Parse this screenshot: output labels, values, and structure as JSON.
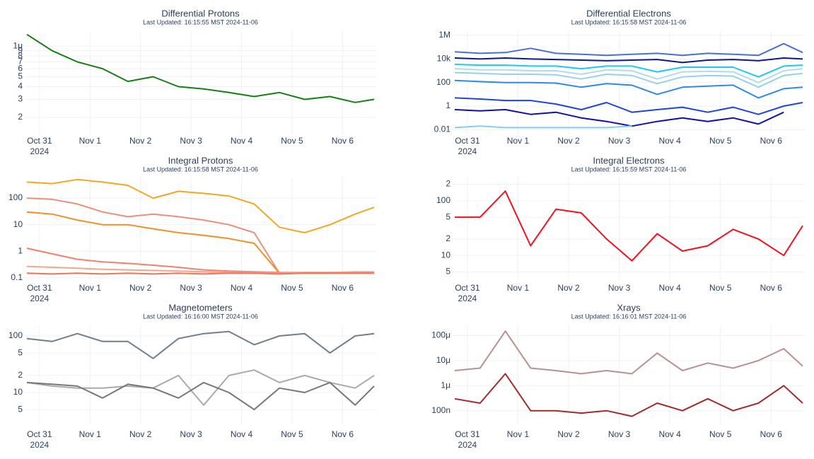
{
  "chart_data": [
    {
      "type": "line",
      "title": "Differential Protons",
      "subtitle": "Last Updated: 16:15:55 MST 2024-11-06",
      "ylog": true,
      "grid": true,
      "xlim": [
        "2024-10-30T17:00",
        "2024-11-06T16:00"
      ],
      "xticks": [
        {
          "value": "2024-10-31T00:00",
          "label": "Oct 31"
        },
        {
          "value": "2024-11-01T00:00",
          "label": "Nov 1"
        },
        {
          "value": "2024-11-02T00:00",
          "label": "Nov 2"
        },
        {
          "value": "2024-11-03T00:00",
          "label": "Nov 3"
        },
        {
          "value": "2024-11-04T00:00",
          "label": "Nov 4"
        },
        {
          "value": "2024-11-05T00:00",
          "label": "Nov 5"
        },
        {
          "value": "2024-11-06T00:00",
          "label": "Nov 6"
        }
      ],
      "x_year": "2024",
      "ylim": [
        1.36e-07,
        1.38e-06
      ],
      "yticks": [
        {
          "value": 1e-06,
          "label": "1μ"
        },
        {
          "value": 9e-07,
          "label": "9"
        },
        {
          "value": 8e-07,
          "label": "8"
        },
        {
          "value": 7e-07,
          "label": "7"
        },
        {
          "value": 6e-07,
          "label": "6"
        },
        {
          "value": 5e-07,
          "label": "5"
        },
        {
          "value": 4e-07,
          "label": "4"
        },
        {
          "value": 3e-07,
          "label": "3"
        },
        {
          "value": 2e-07,
          "label": "2"
        }
      ],
      "x": [
        "2024-10-30T18:00",
        "2024-10-31T06:00",
        "2024-10-31T18:00",
        "2024-11-01T06:00",
        "2024-11-01T18:00",
        "2024-11-02T06:00",
        "2024-11-02T18:00",
        "2024-11-03T06:00",
        "2024-11-03T18:00",
        "2024-11-04T06:00",
        "2024-11-04T18:00",
        "2024-11-05T06:00",
        "2024-11-05T18:00",
        "2024-11-06T06:00",
        "2024-11-06T15:00"
      ],
      "series": [
        {
          "color": "#177d17",
          "values": [
            1.3e-06,
            9e-07,
            7e-07,
            6e-07,
            4.5e-07,
            5e-07,
            4e-07,
            3.8e-07,
            3.5e-07,
            3.2e-07,
            3.5e-07,
            3e-07,
            3.2e-07,
            2.8e-07,
            3e-07
          ]
        }
      ]
    },
    {
      "type": "line",
      "title": "Differential Electrons",
      "subtitle": "Last Updated: 16:15:58 MST 2024-11-06",
      "ylog": true,
      "grid": true,
      "xlim": [
        "2024-10-30T17:00",
        "2024-11-06T16:00"
      ],
      "xticks": [
        {
          "value": "2024-10-31T00:00",
          "label": "Oct 31"
        },
        {
          "value": "2024-11-01T00:00",
          "label": "Nov 1"
        },
        {
          "value": "2024-11-02T00:00",
          "label": "Nov 2"
        },
        {
          "value": "2024-11-03T00:00",
          "label": "Nov 3"
        },
        {
          "value": "2024-11-04T00:00",
          "label": "Nov 4"
        },
        {
          "value": "2024-11-05T00:00",
          "label": "Nov 5"
        },
        {
          "value": "2024-11-06T00:00",
          "label": "Nov 6"
        }
      ],
      "x_year": "2024",
      "ylim": [
        0.004,
        2000000
      ],
      "yticks": [
        {
          "value": 1000000,
          "label": "1M"
        },
        {
          "value": 10000,
          "label": "10k"
        },
        100,
        1,
        0.01
      ],
      "x": [
        "2024-10-30T18:00",
        "2024-10-31T06:00",
        "2024-10-31T18:00",
        "2024-11-01T06:00",
        "2024-11-01T18:00",
        "2024-11-02T06:00",
        "2024-11-02T18:00",
        "2024-11-03T06:00",
        "2024-11-03T18:00",
        "2024-11-04T06:00",
        "2024-11-04T18:00",
        "2024-11-05T06:00",
        "2024-11-05T18:00",
        "2024-11-06T06:00",
        "2024-11-06T15:00"
      ],
      "series": [
        {
          "color": "#4a6fdc",
          "values": [
            40000,
            30000,
            35000,
            80000,
            30000,
            25000,
            20000,
            25000,
            30000,
            20000,
            30000,
            25000,
            20000,
            200000,
            35000
          ]
        },
        {
          "color": "#0d1a8a",
          "values": [
            12000,
            10000,
            12000,
            10000,
            9000,
            8000,
            7000,
            8000,
            9000,
            5000,
            8000,
            9000,
            7000,
            12000,
            10000
          ]
        },
        {
          "color": "#1ec8f5",
          "values": [
            3500,
            3000,
            3000,
            2500,
            2500,
            1500,
            2500,
            2500,
            800,
            2000,
            2000,
            2000,
            300,
            2500,
            3000
          ]
        },
        {
          "color": "#b0dcea",
          "values": [
            1500,
            1200,
            1200,
            1000,
            1000,
            500,
            1200,
            1000,
            200,
            800,
            900,
            800,
            100,
            1000,
            1500
          ]
        },
        {
          "color": "#9ad0e6",
          "values": [
            700,
            600,
            500,
            500,
            450,
            200,
            500,
            400,
            80,
            300,
            400,
            350,
            40,
            400,
            600
          ]
        },
        {
          "color": "#2e8ae6",
          "values": [
            150,
            120,
            100,
            100,
            90,
            40,
            80,
            60,
            10,
            40,
            50,
            60,
            5,
            30,
            40
          ]
        },
        {
          "color": "#1f45d8",
          "values": [
            5,
            4,
            3,
            3,
            1.5,
            0.5,
            2,
            0.3,
            0.5,
            0.8,
            0.3,
            0.8,
            0.2,
            1,
            2
          ]
        },
        {
          "color": "#1010a8",
          "values": [
            0.5,
            0.4,
            0.5,
            0.2,
            0.3,
            0.1,
            0.05,
            0.02,
            0.05,
            0.1,
            0.05,
            0.1,
            0.03,
            0.3,
            null
          ]
        },
        {
          "color": "#87ceeb",
          "values": [
            0.015,
            0.02,
            0.015,
            0.015,
            0.015,
            0.015,
            0.015,
            0.02,
            null,
            null,
            null,
            null,
            null,
            null,
            null
          ]
        }
      ]
    },
    {
      "type": "line",
      "title": "Integral Protons",
      "subtitle": "Last Updated: 16:15:58 MST 2024-11-06",
      "ylog": true,
      "grid": true,
      "xlim": [
        "2024-10-30T17:00",
        "2024-11-06T16:00"
      ],
      "xticks": [
        {
          "value": "2024-10-31T00:00",
          "label": "Oct 31"
        },
        {
          "value": "2024-11-01T00:00",
          "label": "Nov 1"
        },
        {
          "value": "2024-11-02T00:00",
          "label": "Nov 2"
        },
        {
          "value": "2024-11-03T00:00",
          "label": "Nov 3"
        },
        {
          "value": "2024-11-04T00:00",
          "label": "Nov 4"
        },
        {
          "value": "2024-11-05T00:00",
          "label": "Nov 5"
        },
        {
          "value": "2024-11-06T00:00",
          "label": "Nov 6"
        }
      ],
      "x_year": "2024",
      "ylim": [
        0.088,
        630
      ],
      "yticks": [
        100,
        10,
        1,
        0.1
      ],
      "x": [
        "2024-10-30T18:00",
        "2024-10-31T06:00",
        "2024-10-31T18:00",
        "2024-11-01T06:00",
        "2024-11-01T18:00",
        "2024-11-02T06:00",
        "2024-11-02T18:00",
        "2024-11-03T06:00",
        "2024-11-03T18:00",
        "2024-11-04T06:00",
        "2024-11-04T18:00",
        "2024-11-05T06:00",
        "2024-11-05T18:00",
        "2024-11-06T06:00",
        "2024-11-06T15:00"
      ],
      "series": [
        {
          "color": "#f5a623",
          "values": [
            400,
            350,
            500,
            400,
            300,
            100,
            180,
            150,
            120,
            60,
            8,
            5,
            10,
            25,
            45
          ]
        },
        {
          "color": "#e8917a",
          "values": [
            100,
            90,
            60,
            30,
            20,
            25,
            20,
            15,
            10,
            5,
            0.15,
            0.15,
            0.15,
            0.15,
            0.16
          ]
        },
        {
          "color": "#f0902a",
          "values": [
            30,
            25,
            15,
            10,
            10,
            7,
            5,
            4,
            3,
            2,
            0.15,
            0.15,
            0.15,
            0.16,
            0.16
          ]
        },
        {
          "color": "#f08070",
          "values": [
            1.3,
            0.8,
            0.5,
            0.4,
            0.35,
            0.3,
            0.25,
            0.2,
            0.18,
            0.17,
            0.16,
            0.16,
            0.16,
            0.16,
            0.16
          ]
        },
        {
          "color": "#f4a58a",
          "values": [
            0.27,
            0.25,
            0.23,
            0.21,
            0.2,
            0.19,
            0.18,
            0.17,
            0.16,
            0.16,
            0.15,
            0.16,
            0.16,
            0.17,
            0.17
          ]
        },
        {
          "color": "#e9765c",
          "values": [
            0.15,
            0.14,
            0.15,
            0.14,
            0.15,
            0.14,
            0.15,
            0.14,
            0.15,
            0.15,
            0.14,
            0.15,
            0.15,
            0.15,
            0.15
          ]
        }
      ]
    },
    {
      "type": "line",
      "title": "Integral Electrons",
      "subtitle": "Last Updated: 16:15:59 MST 2024-11-06",
      "ylog": true,
      "grid": true,
      "xlim": [
        "2024-10-30T17:00",
        "2024-11-06T16:00"
      ],
      "xticks": [
        {
          "value": "2024-10-31T00:00",
          "label": "Oct 31"
        },
        {
          "value": "2024-11-01T00:00",
          "label": "Nov 1"
        },
        {
          "value": "2024-11-02T00:00",
          "label": "Nov 2"
        },
        {
          "value": "2024-11-03T00:00",
          "label": "Nov 3"
        },
        {
          "value": "2024-11-04T00:00",
          "label": "Nov 4"
        },
        {
          "value": "2024-11-05T00:00",
          "label": "Nov 5"
        },
        {
          "value": "2024-11-06T00:00",
          "label": "Nov 6"
        }
      ],
      "x_year": "2024",
      "ylim": [
        3.65,
        274
      ],
      "yticks": [
        {
          "value": 200,
          "label": "2"
        },
        100,
        {
          "value": 50,
          "label": "5"
        },
        {
          "value": 20,
          "label": "2"
        },
        10,
        {
          "value": 5,
          "label": "5"
        }
      ],
      "x": [
        "2024-10-30T18:00",
        "2024-10-31T06:00",
        "2024-10-31T18:00",
        "2024-11-01T06:00",
        "2024-11-01T18:00",
        "2024-11-02T06:00",
        "2024-11-02T18:00",
        "2024-11-03T06:00",
        "2024-11-03T18:00",
        "2024-11-04T06:00",
        "2024-11-04T18:00",
        "2024-11-05T06:00",
        "2024-11-05T18:00",
        "2024-11-06T06:00",
        "2024-11-06T15:00"
      ],
      "series": [
        {
          "color": "#f5101f",
          "values": [
            50,
            50,
            150,
            15,
            70,
            60,
            20,
            8,
            25,
            12,
            15,
            30,
            20,
            10,
            35
          ]
        }
      ]
    },
    {
      "type": "line",
      "title": "Magnetometers",
      "subtitle": "Last Updated: 16:16:00 MST 2024-11-06",
      "ylog": true,
      "grid": true,
      "xlim": [
        "2024-10-30T17:00",
        "2024-11-06T16:00"
      ],
      "xticks": [
        {
          "value": "2024-10-31T00:00",
          "label": "Oct 31"
        },
        {
          "value": "2024-11-01T00:00",
          "label": "Nov 1"
        },
        {
          "value": "2024-11-02T00:00",
          "label": "Nov 2"
        },
        {
          "value": "2024-11-03T00:00",
          "label": "Nov 3"
        },
        {
          "value": "2024-11-04T00:00",
          "label": "Nov 4"
        },
        {
          "value": "2024-11-05T00:00",
          "label": "Nov 5"
        },
        {
          "value": "2024-11-06T00:00",
          "label": "Nov 6"
        }
      ],
      "x_year": "2024",
      "ylim": [
        2.74,
        154
      ],
      "yticks": [
        100,
        {
          "value": 50,
          "label": "5"
        },
        {
          "value": 20,
          "label": "2"
        },
        10,
        {
          "value": 5,
          "label": "5"
        }
      ],
      "x": [
        "2024-10-30T18:00",
        "2024-10-31T06:00",
        "2024-10-31T18:00",
        "2024-11-01T06:00",
        "2024-11-01T18:00",
        "2024-11-02T06:00",
        "2024-11-02T18:00",
        "2024-11-03T06:00",
        "2024-11-03T18:00",
        "2024-11-04T06:00",
        "2024-11-04T18:00",
        "2024-11-05T06:00",
        "2024-11-05T18:00",
        "2024-11-06T06:00",
        "2024-11-06T15:00"
      ],
      "series": [
        {
          "color": "#6e7f8d",
          "values": [
            90,
            80,
            110,
            80,
            80,
            40,
            90,
            110,
            120,
            70,
            100,
            110,
            50,
            100,
            110
          ]
        },
        {
          "color": "#aaaaaa",
          "values": [
            15,
            13,
            12,
            12,
            13,
            12,
            20,
            6,
            20,
            25,
            15,
            20,
            15,
            12,
            20
          ]
        },
        {
          "color": "#777777",
          "values": [
            15,
            14,
            13,
            8,
            14,
            12,
            8,
            15,
            10,
            5,
            12,
            10,
            15,
            6,
            13
          ]
        }
      ]
    },
    {
      "type": "line",
      "title": "Xrays",
      "subtitle": "Last Updated: 16:16:01 MST 2024-11-06",
      "ylog": true,
      "grid": true,
      "xlim": [
        "2024-10-30T17:00",
        "2024-11-06T16:00"
      ],
      "xticks": [
        {
          "value": "2024-10-31T00:00",
          "label": "Oct 31"
        },
        {
          "value": "2024-11-01T00:00",
          "label": "Nov 1"
        },
        {
          "value": "2024-11-02T00:00",
          "label": "Nov 2"
        },
        {
          "value": "2024-11-03T00:00",
          "label": "Nov 3"
        },
        {
          "value": "2024-11-04T00:00",
          "label": "Nov 4"
        },
        {
          "value": "2024-11-05T00:00",
          "label": "Nov 5"
        },
        {
          "value": "2024-11-06T00:00",
          "label": "Nov 6"
        }
      ],
      "x_year": "2024",
      "ylim": [
        2.85e-08,
        0.000256
      ],
      "yticks": [
        {
          "value": 0.0001,
          "label": "100μ"
        },
        {
          "value": 1e-05,
          "label": "10μ"
        },
        {
          "value": 1e-06,
          "label": "1μ"
        },
        {
          "value": 1e-07,
          "label": "100n"
        }
      ],
      "x": [
        "2024-10-30T18:00",
        "2024-10-31T06:00",
        "2024-10-31T18:00",
        "2024-11-01T06:00",
        "2024-11-01T18:00",
        "2024-11-02T06:00",
        "2024-11-02T18:00",
        "2024-11-03T06:00",
        "2024-11-03T18:00",
        "2024-11-04T06:00",
        "2024-11-04T18:00",
        "2024-11-05T06:00",
        "2024-11-05T18:00",
        "2024-11-06T06:00",
        "2024-11-06T15:00"
      ],
      "series": [
        {
          "color": "#bc8f8f",
          "values": [
            4e-06,
            5e-06,
            0.00015,
            5e-06,
            4e-06,
            3e-06,
            4e-06,
            3e-06,
            2e-05,
            4e-06,
            8e-06,
            5e-06,
            1e-05,
            3e-05,
            6e-06
          ]
        },
        {
          "color": "#a52a2a",
          "values": [
            3e-07,
            2e-07,
            3e-06,
            1e-07,
            1e-07,
            8e-08,
            1e-07,
            6e-08,
            2e-07,
            1e-07,
            3e-07,
            1e-07,
            2e-07,
            1e-06,
            2e-07
          ]
        }
      ]
    }
  ]
}
